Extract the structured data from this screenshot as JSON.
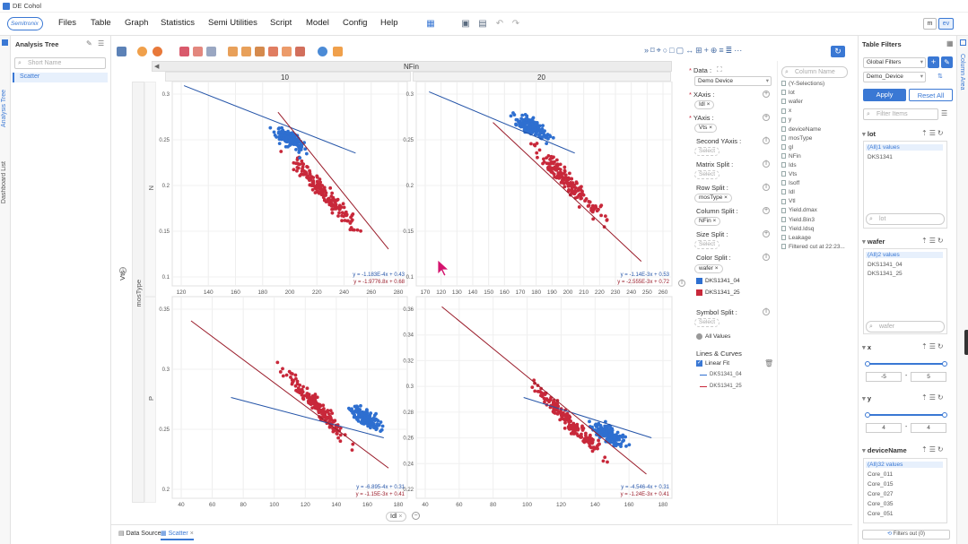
{
  "window": {
    "title": "DE Cohol"
  },
  "brand": {
    "logo_text": "Semitronix"
  },
  "menu": [
    "Files",
    "Table",
    "Graph",
    "Statistics",
    "Semi Utilities",
    "Script",
    "Model",
    "Config",
    "Help"
  ],
  "view_toggles": [
    "m",
    "ev"
  ],
  "left_rail": {
    "tabs": [
      "Analysis Tree",
      "Dashboard List"
    ]
  },
  "analysis_tree": {
    "title": "Analysis Tree",
    "search_placeholder": "Short Name",
    "item": "Scatter"
  },
  "plot": {
    "top_header": "NFin",
    "col_labels": [
      "10",
      "20"
    ],
    "row_labels": [
      "N",
      "P"
    ],
    "row_group_label": "mosType",
    "y_axis_label": "Vts",
    "x_axis_label": "Idl",
    "panels": [
      {
        "yticks": [
          "0.3",
          "0.25",
          "0.2",
          "0.15",
          "0.1"
        ],
        "xticks": [
          "120",
          "140",
          "160",
          "180",
          "200",
          "220",
          "240",
          "260",
          "280"
        ],
        "eq1": "y = -1.183E-4x + 0.43",
        "eq2": "y = -1.9776.8x + 0.68"
      },
      {
        "yticks": [
          "0.3",
          "0.25",
          "0.2",
          "0.15",
          "0.1"
        ],
        "xticks": [
          "170",
          "120",
          "130",
          "140",
          "150",
          "160",
          "170",
          "180",
          "190",
          "200",
          "210",
          "220",
          "230",
          "240",
          "250",
          "260"
        ],
        "eq1": "y = -1.14E-3x + 0.53",
        "eq2": "y = -2.555E-3x + 0.72"
      },
      {
        "yticks": [
          "0.35",
          "0.3",
          "0.25",
          "0.2"
        ],
        "xticks": [
          "40",
          "60",
          "80",
          "100",
          "120",
          "140",
          "160",
          "180"
        ],
        "eq1": "y = -6.895-4x + 0.31",
        "eq2": "y = -1.15E-3x + 0.41"
      },
      {
        "yticks": [
          "0.36",
          "0.34",
          "0.32",
          "0.3",
          "0.28",
          "0.26",
          "0.24",
          "0.22"
        ],
        "xticks": [
          "40",
          "60",
          "80",
          "100",
          "120",
          "140",
          "160",
          "180"
        ],
        "eq1": "y = -4.546-4x + 0.31",
        "eq2": "y = -1.24E-3x + 0.41"
      }
    ]
  },
  "chart_data": {
    "type": "scatter",
    "title": "",
    "facet_columns": {
      "name": "NFin",
      "values": [
        "10",
        "20"
      ]
    },
    "facet_rows": {
      "name": "mosType",
      "values": [
        "N",
        "P"
      ]
    },
    "xlabel": "Idl",
    "ylabel": "Vts",
    "series": [
      {
        "name": "DKS1341_04",
        "color": "#2e6fd0"
      },
      {
        "name": "DKS1341_25",
        "color": "#c8283a"
      }
    ],
    "regression_lines": [
      "y = -1.183E-4x + 0.43",
      "y = -1.9776.8x + 0.68",
      "y = -1.14E-3x + 0.53",
      "y = -2.555E-3x + 0.72",
      "y = -6.895-4x + 0.31",
      "y = -1.15E-3x + 0.41",
      "y = -4.546-4x + 0.31",
      "y = -1.24E-3x + 0.41"
    ]
  },
  "config": {
    "data_label": "Data :",
    "data_value": "Demo Device",
    "xaxis_label": "XAxis :",
    "xaxis_chip": "Idl",
    "yaxis_label": "YAxis :",
    "yaxis_chip": "Vts",
    "second_yaxis_label": "Second YAxis :",
    "matrix_split_label": "Matrix Split :",
    "row_split_label": "Row Split :",
    "row_split_chip": "mosType",
    "column_split_label": "Column Split :",
    "column_split_chip": "NFin",
    "size_split_label": "Size Split :",
    "color_split_label": "Color Split :",
    "color_split_chip": "wafer",
    "color_legend": [
      "DKS1341_04",
      "DKS1341_25"
    ],
    "symbol_split_label": "Symbol Split :",
    "symbol_all": "All Values",
    "lines_label": "Lines & Curves",
    "linear_fit": "Linear Fit",
    "fit_legend": [
      "DKS1341_04",
      "DKS1341_25"
    ],
    "placeholder": "Select"
  },
  "columns": {
    "search_placeholder": "Column Name",
    "items": [
      "(Y-Selections)",
      "lot",
      "wafer",
      "x",
      "y",
      "deviceName",
      "mosType",
      "gl",
      "NFin",
      "Ids",
      "Vts",
      "Isoff",
      "Idl",
      "Vtl",
      "Yield.dmax",
      "Yield.Bin3",
      "Yield.Idsq",
      "Leakage",
      "Filtered cut at 22:23..."
    ]
  },
  "table_filters": {
    "title": "Table Filters",
    "global": "Global Filters",
    "source": "Demo_Device",
    "apply": "Apply",
    "reset": "Reset All",
    "filter_placeholder": "Filter Items",
    "lot": {
      "label": "lot",
      "all": "(All)1 values",
      "values": [
        "DKS1341"
      ],
      "search": "lot"
    },
    "wafer": {
      "label": "wafer",
      "all": "(All)2 values",
      "values": [
        "DKS1341_04",
        "DKS1341_25"
      ],
      "search": "wafer"
    },
    "x": {
      "label": "x",
      "min": "-5",
      "max": "5"
    },
    "y": {
      "label": "y",
      "min": "4",
      "max": "4"
    },
    "deviceName": {
      "label": "deviceName",
      "all": "(All)32 values",
      "values": [
        "Core_011",
        "Core_015",
        "Core_027",
        "Core_035",
        "Core_051"
      ]
    },
    "filter_out": "Filters out (0)"
  },
  "right_rail": {
    "label": "Column Area"
  },
  "bottom_tabs": [
    "Data Source",
    "Scatter"
  ]
}
